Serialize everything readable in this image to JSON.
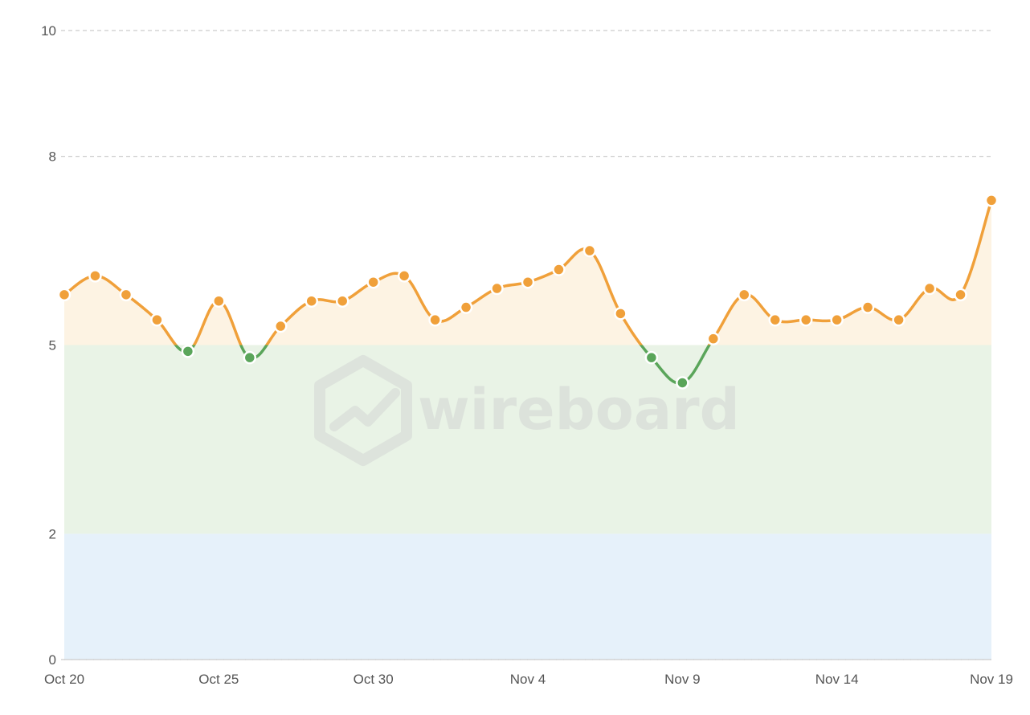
{
  "watermark": {
    "text": "wireboard"
  },
  "chart_data": {
    "type": "line",
    "x": [
      "Oct 20",
      "Oct 21",
      "Oct 22",
      "Oct 23",
      "Oct 24",
      "Oct 25",
      "Oct 26",
      "Oct 27",
      "Oct 28",
      "Oct 29",
      "Oct 30",
      "Oct 31",
      "Nov 1",
      "Nov 2",
      "Nov 3",
      "Nov 4",
      "Nov 5",
      "Nov 6",
      "Nov 7",
      "Nov 8",
      "Nov 9",
      "Nov 10",
      "Nov 11",
      "Nov 12",
      "Nov 13",
      "Nov 14",
      "Nov 15",
      "Nov 16",
      "Nov 17",
      "Nov 18",
      "Nov 19"
    ],
    "values": [
      5.8,
      6.1,
      5.8,
      5.4,
      4.9,
      5.7,
      4.8,
      5.3,
      5.7,
      5.7,
      6.0,
      6.1,
      5.4,
      5.6,
      5.9,
      6.0,
      6.2,
      6.5,
      5.5,
      4.8,
      4.4,
      5.1,
      5.8,
      5.4,
      5.4,
      5.4,
      5.6,
      5.4,
      5.9,
      5.8,
      7.3
    ],
    "x_tick_labels": [
      "Oct 20",
      "Oct 25",
      "Oct 30",
      "Nov 4",
      "Nov 9",
      "Nov 14",
      "Nov 19"
    ],
    "y_ticks": [
      0,
      2,
      5,
      8,
      10
    ],
    "ylim": [
      0,
      10
    ],
    "bands": [
      {
        "from": 0,
        "to": 2,
        "color": "#e6f1fa"
      },
      {
        "from": 2,
        "to": 5,
        "color": "#e9f3e6"
      },
      {
        "from": 5,
        "to": 10,
        "color": "#fdf3e3",
        "fill_under_line_only": true
      }
    ],
    "colors": {
      "above_threshold": "#f0a03a",
      "below_threshold": "#5aa55a",
      "grid": "#cccccc",
      "axis": "#cccccc"
    },
    "threshold": 5,
    "grid": true
  }
}
